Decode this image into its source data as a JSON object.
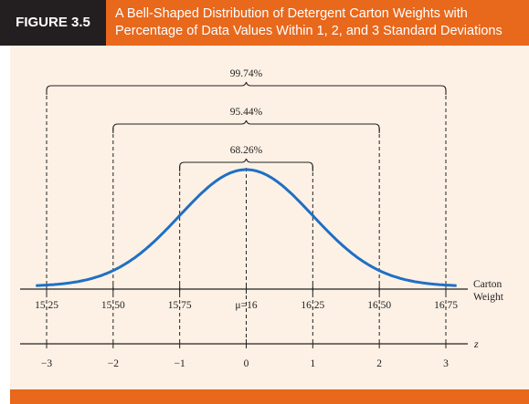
{
  "figure": {
    "label": "FIGURE 3.5",
    "title_line1": "A Bell-Shaped Distribution of Detergent Carton Weights with",
    "title_line2": "Percentage of Data Values Within 1, 2, and 3 Standard Deviations"
  },
  "colors": {
    "accent": "#e8681c",
    "label_bg": "#231f20",
    "plot_bg": "#fdf1e5",
    "curve": "#1f6fc4"
  },
  "chart_data": {
    "type": "line",
    "distribution": "normal",
    "mean": 16,
    "std_dev": 0.25,
    "x_range": [
      15.2,
      16.8
    ],
    "x_axis_label_line1": "Carton",
    "x_axis_label_line2": "Weight",
    "x_ticks": [
      {
        "value": 15.25,
        "label": "15.25"
      },
      {
        "value": 15.5,
        "label": "15.50"
      },
      {
        "value": 15.75,
        "label": "15.75"
      },
      {
        "value": 16,
        "label": "μ=16"
      },
      {
        "value": 16.25,
        "label": "16.25"
      },
      {
        "value": 16.5,
        "label": "16.50"
      },
      {
        "value": 16.75,
        "label": "16.75"
      }
    ],
    "z_axis_label": "z",
    "z_ticks": [
      {
        "value": -3,
        "label": "−3"
      },
      {
        "value": -2,
        "label": "−2"
      },
      {
        "value": -1,
        "label": "−1"
      },
      {
        "value": 0,
        "label": "0"
      },
      {
        "value": 1,
        "label": "1"
      },
      {
        "value": 2,
        "label": "2"
      },
      {
        "value": 3,
        "label": "3"
      }
    ],
    "intervals": [
      {
        "k": 1,
        "from": 15.75,
        "to": 16.25,
        "percent_label": "68.26%"
      },
      {
        "k": 2,
        "from": 15.5,
        "to": 16.5,
        "percent_label": "95.44%"
      },
      {
        "k": 3,
        "from": 15.25,
        "to": 16.75,
        "percent_label": "99.74%"
      }
    ]
  }
}
